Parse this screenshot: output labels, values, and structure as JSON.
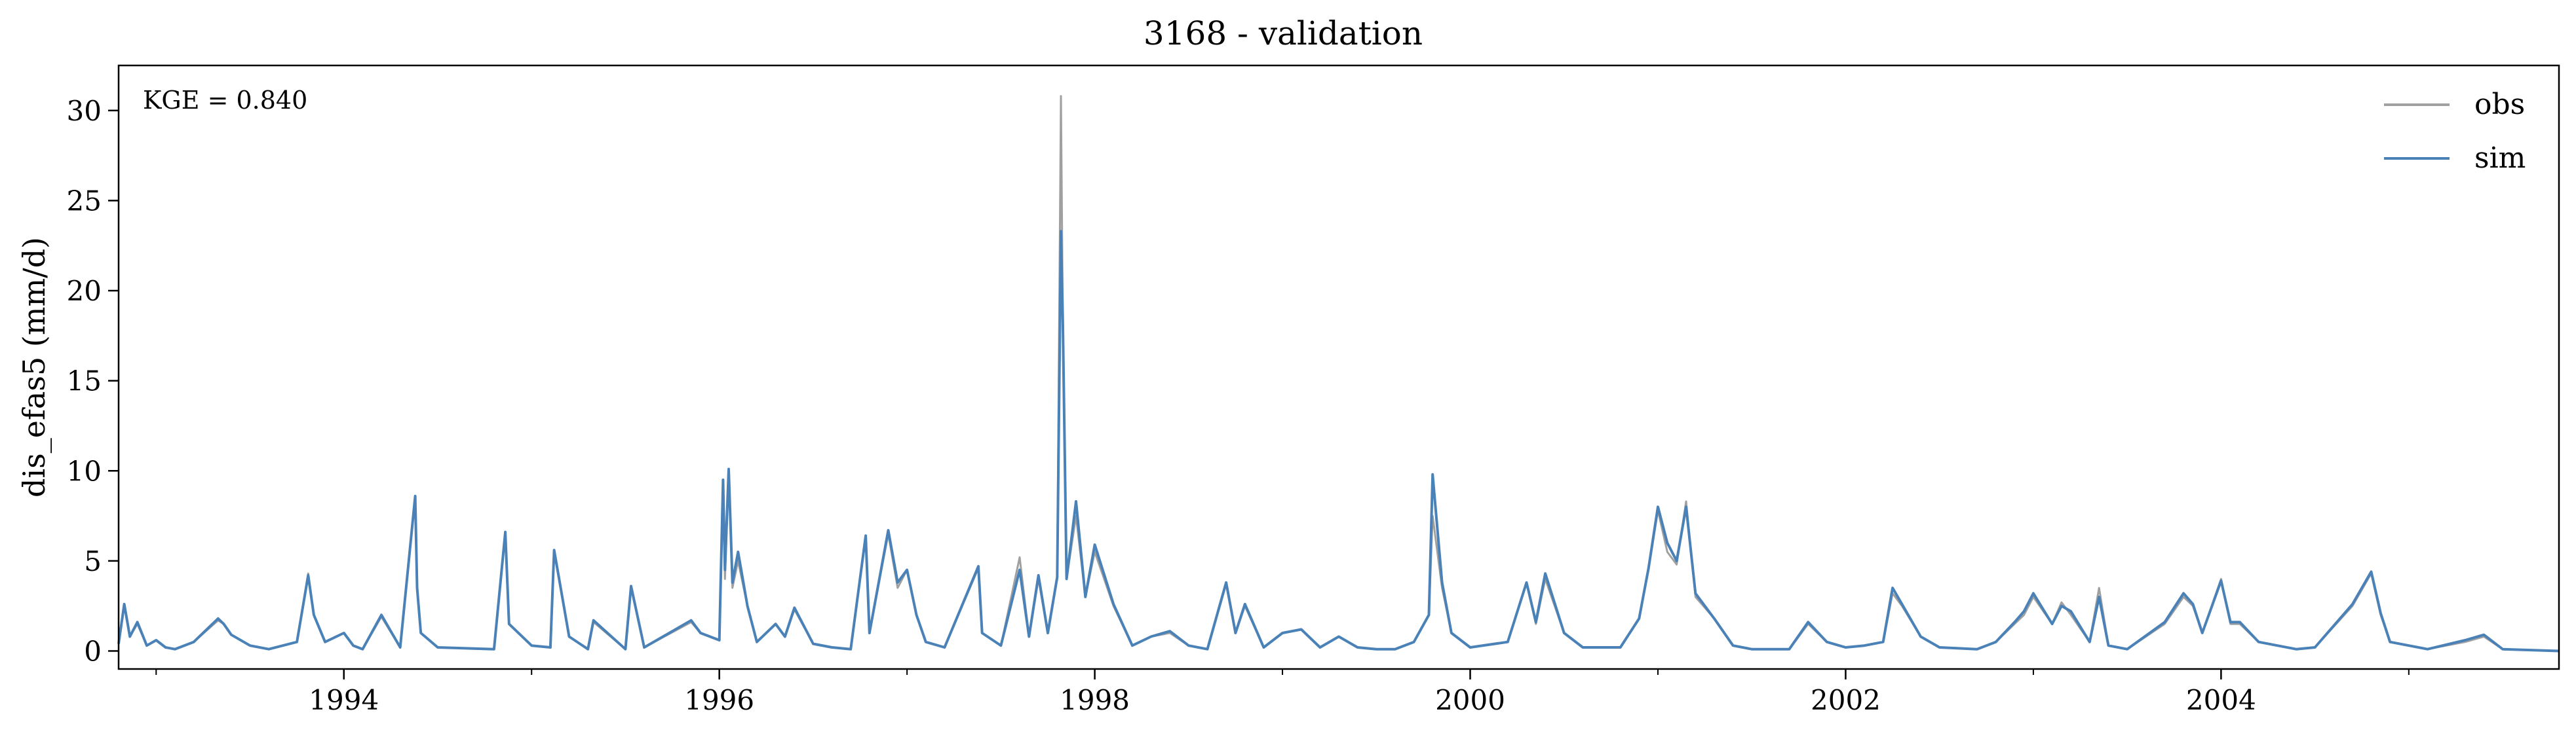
{
  "chart_data": {
    "type": "line",
    "title": "3168 - validation",
    "xlabel": "",
    "ylabel": "dis_efas5 (mm/d)",
    "annotation": "KGE = 0.840",
    "xlim": [
      1992.8,
      2005.8
    ],
    "ylim": [
      -1.0,
      32.5
    ],
    "x_ticks": [
      1994,
      1996,
      1998,
      2000,
      2002,
      2004
    ],
    "x_tick_labels": [
      "1994",
      "1996",
      "1998",
      "2000",
      "2002",
      "2004"
    ],
    "x_minor_ticks": [
      1993,
      1995,
      1997,
      1999,
      2001,
      2003,
      2005
    ],
    "y_ticks": [
      0,
      5,
      10,
      15,
      20,
      25,
      30
    ],
    "y_tick_labels": [
      "0",
      "5",
      "10",
      "15",
      "20",
      "25",
      "30"
    ],
    "grid": false,
    "legend_position": "top-right",
    "colors": {
      "obs": "#a0a0a0",
      "sim": "#4a82b8"
    },
    "series": [
      {
        "name": "obs",
        "x": [
          1992.8,
          1992.83,
          1992.86,
          1992.9,
          1992.95,
          1993.0,
          1993.05,
          1993.1,
          1993.2,
          1993.33,
          1993.36,
          1993.4,
          1993.5,
          1993.6,
          1993.75,
          1993.81,
          1993.84,
          1993.9,
          1994.0,
          1994.05,
          1994.1,
          1994.2,
          1994.3,
          1994.38,
          1994.39,
          1994.41,
          1994.5,
          1994.8,
          1994.86,
          1994.88,
          1995.0,
          1995.1,
          1995.12,
          1995.2,
          1995.3,
          1995.33,
          1995.5,
          1995.53,
          1995.6,
          1995.85,
          1995.9,
          1996.0,
          1996.02,
          1996.03,
          1996.05,
          1996.07,
          1996.1,
          1996.15,
          1996.2,
          1996.3,
          1996.35,
          1996.4,
          1996.5,
          1996.6,
          1996.7,
          1996.78,
          1996.8,
          1996.9,
          1996.95,
          1997.0,
          1997.05,
          1997.1,
          1997.2,
          1997.38,
          1997.4,
          1997.5,
          1997.6,
          1997.65,
          1997.7,
          1997.75,
          1997.8,
          1997.82,
          1997.83,
          1997.85,
          1997.9,
          1997.95,
          1998.0,
          1998.1,
          1998.2,
          1998.3,
          1998.4,
          1998.5,
          1998.6,
          1998.7,
          1998.75,
          1998.8,
          1998.9,
          1999.0,
          1999.1,
          1999.2,
          1999.3,
          1999.4,
          1999.5,
          1999.6,
          1999.7,
          1999.78,
          1999.8,
          1999.85,
          1999.9,
          2000.0,
          2000.2,
          2000.3,
          2000.35,
          2000.4,
          2000.5,
          2000.6,
          2000.8,
          2000.9,
          2000.95,
          2001.0,
          2001.05,
          2001.1,
          2001.15,
          2001.2,
          2001.3,
          2001.4,
          2001.5,
          2001.7,
          2001.8,
          2001.9,
          2002.0,
          2002.1,
          2002.2,
          2002.25,
          2002.3,
          2002.4,
          2002.5,
          2002.7,
          2002.8,
          2002.9,
          2002.95,
          2003.0,
          2003.1,
          2003.15,
          2003.2,
          2003.3,
          2003.35,
          2003.4,
          2003.5,
          2003.7,
          2003.8,
          2003.85,
          2003.9,
          2004.0,
          2004.05,
          2004.1,
          2004.2,
          2004.3,
          2004.4,
          2004.5,
          2004.7,
          2004.8,
          2004.85,
          2004.9,
          2005.0,
          2005.1,
          2005.3,
          2005.4,
          2005.5,
          2005.8
        ],
        "y": [
          0.4,
          2.5,
          0.8,
          1.5,
          0.3,
          0.6,
          0.2,
          0.1,
          0.5,
          1.7,
          1.5,
          0.9,
          0.3,
          0.1,
          0.5,
          4.3,
          2.0,
          0.5,
          1.0,
          0.3,
          0.1,
          1.9,
          0.2,
          8.5,
          3.5,
          1.0,
          0.2,
          0.1,
          6.5,
          1.5,
          0.3,
          0.2,
          5.5,
          0.8,
          0.1,
          1.6,
          0.1,
          3.5,
          0.2,
          1.6,
          1.0,
          0.6,
          9.3,
          4.0,
          10.0,
          3.5,
          5.0,
          2.5,
          0.5,
          1.5,
          0.8,
          2.3,
          0.4,
          0.2,
          0.1,
          6.3,
          1.0,
          6.5,
          3.5,
          4.5,
          2.0,
          0.5,
          0.2,
          4.6,
          1.0,
          0.3,
          5.2,
          0.8,
          4.0,
          1.0,
          4.0,
          30.8,
          18.0,
          4.0,
          7.5,
          3.0,
          5.5,
          2.5,
          0.3,
          0.8,
          1.0,
          0.3,
          0.1,
          3.7,
          1.0,
          2.5,
          0.2,
          1.0,
          1.2,
          0.2,
          0.8,
          0.2,
          0.1,
          0.1,
          0.5,
          2.0,
          7.5,
          3.5,
          1.0,
          0.2,
          0.5,
          3.8,
          1.5,
          4.0,
          1.0,
          0.2,
          0.2,
          1.8,
          4.5,
          7.8,
          5.5,
          4.8,
          8.3,
          3.0,
          1.8,
          0.3,
          0.1,
          0.1,
          1.5,
          0.5,
          0.2,
          0.3,
          0.5,
          3.2,
          2.5,
          0.8,
          0.2,
          0.1,
          0.5,
          1.5,
          2.0,
          3.0,
          1.5,
          2.7,
          2.0,
          0.5,
          3.5,
          0.3,
          0.1,
          1.5,
          3.0,
          2.5,
          1.0,
          4.0,
          1.5,
          1.5,
          0.5,
          0.3,
          0.1,
          0.2,
          2.5,
          4.3,
          2.0,
          0.5,
          0.3,
          0.1,
          0.5,
          0.8,
          0.1,
          0.0
        ]
      },
      {
        "name": "sim",
        "x": [
          1992.8,
          1992.83,
          1992.86,
          1992.9,
          1992.95,
          1993.0,
          1993.05,
          1993.1,
          1993.2,
          1993.33,
          1993.36,
          1993.4,
          1993.5,
          1993.6,
          1993.75,
          1993.81,
          1993.84,
          1993.9,
          1994.0,
          1994.05,
          1994.1,
          1994.2,
          1994.3,
          1994.38,
          1994.39,
          1994.41,
          1994.5,
          1994.8,
          1994.86,
          1994.88,
          1995.0,
          1995.1,
          1995.12,
          1995.2,
          1995.3,
          1995.33,
          1995.5,
          1995.53,
          1995.6,
          1995.85,
          1995.9,
          1996.0,
          1996.02,
          1996.03,
          1996.05,
          1996.07,
          1996.1,
          1996.15,
          1996.2,
          1996.3,
          1996.35,
          1996.4,
          1996.5,
          1996.6,
          1996.7,
          1996.78,
          1996.8,
          1996.9,
          1996.95,
          1997.0,
          1997.05,
          1997.1,
          1997.2,
          1997.38,
          1997.4,
          1997.5,
          1997.6,
          1997.65,
          1997.7,
          1997.75,
          1997.8,
          1997.82,
          1997.83,
          1997.85,
          1997.9,
          1997.95,
          1998.0,
          1998.1,
          1998.2,
          1998.3,
          1998.4,
          1998.5,
          1998.6,
          1998.7,
          1998.75,
          1998.8,
          1998.9,
          1999.0,
          1999.1,
          1999.2,
          1999.3,
          1999.4,
          1999.5,
          1999.6,
          1999.7,
          1999.78,
          1999.8,
          1999.85,
          1999.9,
          2000.0,
          2000.2,
          2000.3,
          2000.35,
          2000.4,
          2000.5,
          2000.6,
          2000.8,
          2000.9,
          2000.95,
          2001.0,
          2001.05,
          2001.1,
          2001.15,
          2001.2,
          2001.3,
          2001.4,
          2001.5,
          2001.7,
          2001.8,
          2001.9,
          2002.0,
          2002.1,
          2002.2,
          2002.25,
          2002.3,
          2002.4,
          2002.5,
          2002.7,
          2002.8,
          2002.9,
          2002.95,
          2003.0,
          2003.1,
          2003.15,
          2003.2,
          2003.3,
          2003.35,
          2003.4,
          2003.5,
          2003.7,
          2003.8,
          2003.85,
          2003.9,
          2004.0,
          2004.05,
          2004.1,
          2004.2,
          2004.3,
          2004.4,
          2004.5,
          2004.7,
          2004.8,
          2004.85,
          2004.9,
          2005.0,
          2005.1,
          2005.3,
          2005.4,
          2005.5,
          2005.8
        ],
        "y": [
          0.4,
          2.6,
          0.8,
          1.6,
          0.3,
          0.6,
          0.2,
          0.1,
          0.5,
          1.8,
          1.5,
          0.9,
          0.3,
          0.1,
          0.5,
          4.2,
          2.0,
          0.5,
          1.0,
          0.3,
          0.1,
          2.0,
          0.2,
          8.6,
          3.5,
          1.0,
          0.2,
          0.1,
          6.6,
          1.5,
          0.3,
          0.2,
          5.6,
          0.8,
          0.1,
          1.7,
          0.1,
          3.6,
          0.2,
          1.7,
          1.0,
          0.6,
          9.5,
          4.5,
          10.1,
          3.8,
          5.5,
          2.5,
          0.5,
          1.5,
          0.8,
          2.4,
          0.4,
          0.2,
          0.1,
          6.4,
          1.0,
          6.7,
          3.8,
          4.5,
          2.0,
          0.5,
          0.2,
          4.7,
          1.0,
          0.3,
          4.5,
          0.8,
          4.2,
          1.0,
          4.1,
          23.3,
          18.2,
          4.0,
          8.3,
          3.0,
          5.9,
          2.6,
          0.3,
          0.8,
          1.1,
          0.3,
          0.1,
          3.8,
          1.0,
          2.6,
          0.2,
          1.0,
          1.2,
          0.2,
          0.8,
          0.2,
          0.1,
          0.1,
          0.5,
          2.0,
          9.8,
          3.8,
          1.0,
          0.2,
          0.5,
          3.8,
          1.6,
          4.3,
          1.0,
          0.2,
          0.2,
          1.8,
          4.6,
          8.0,
          6.0,
          5.0,
          8.0,
          3.2,
          1.8,
          0.3,
          0.1,
          0.1,
          1.6,
          0.5,
          0.2,
          0.3,
          0.5,
          3.5,
          2.6,
          0.8,
          0.2,
          0.1,
          0.5,
          1.6,
          2.2,
          3.2,
          1.5,
          2.5,
          2.2,
          0.5,
          3.0,
          0.3,
          0.1,
          1.6,
          3.2,
          2.6,
          1.0,
          3.9,
          1.6,
          1.6,
          0.5,
          0.3,
          0.1,
          0.2,
          2.6,
          4.4,
          2.1,
          0.5,
          0.3,
          0.1,
          0.6,
          0.9,
          0.1,
          0.0
        ]
      }
    ]
  }
}
